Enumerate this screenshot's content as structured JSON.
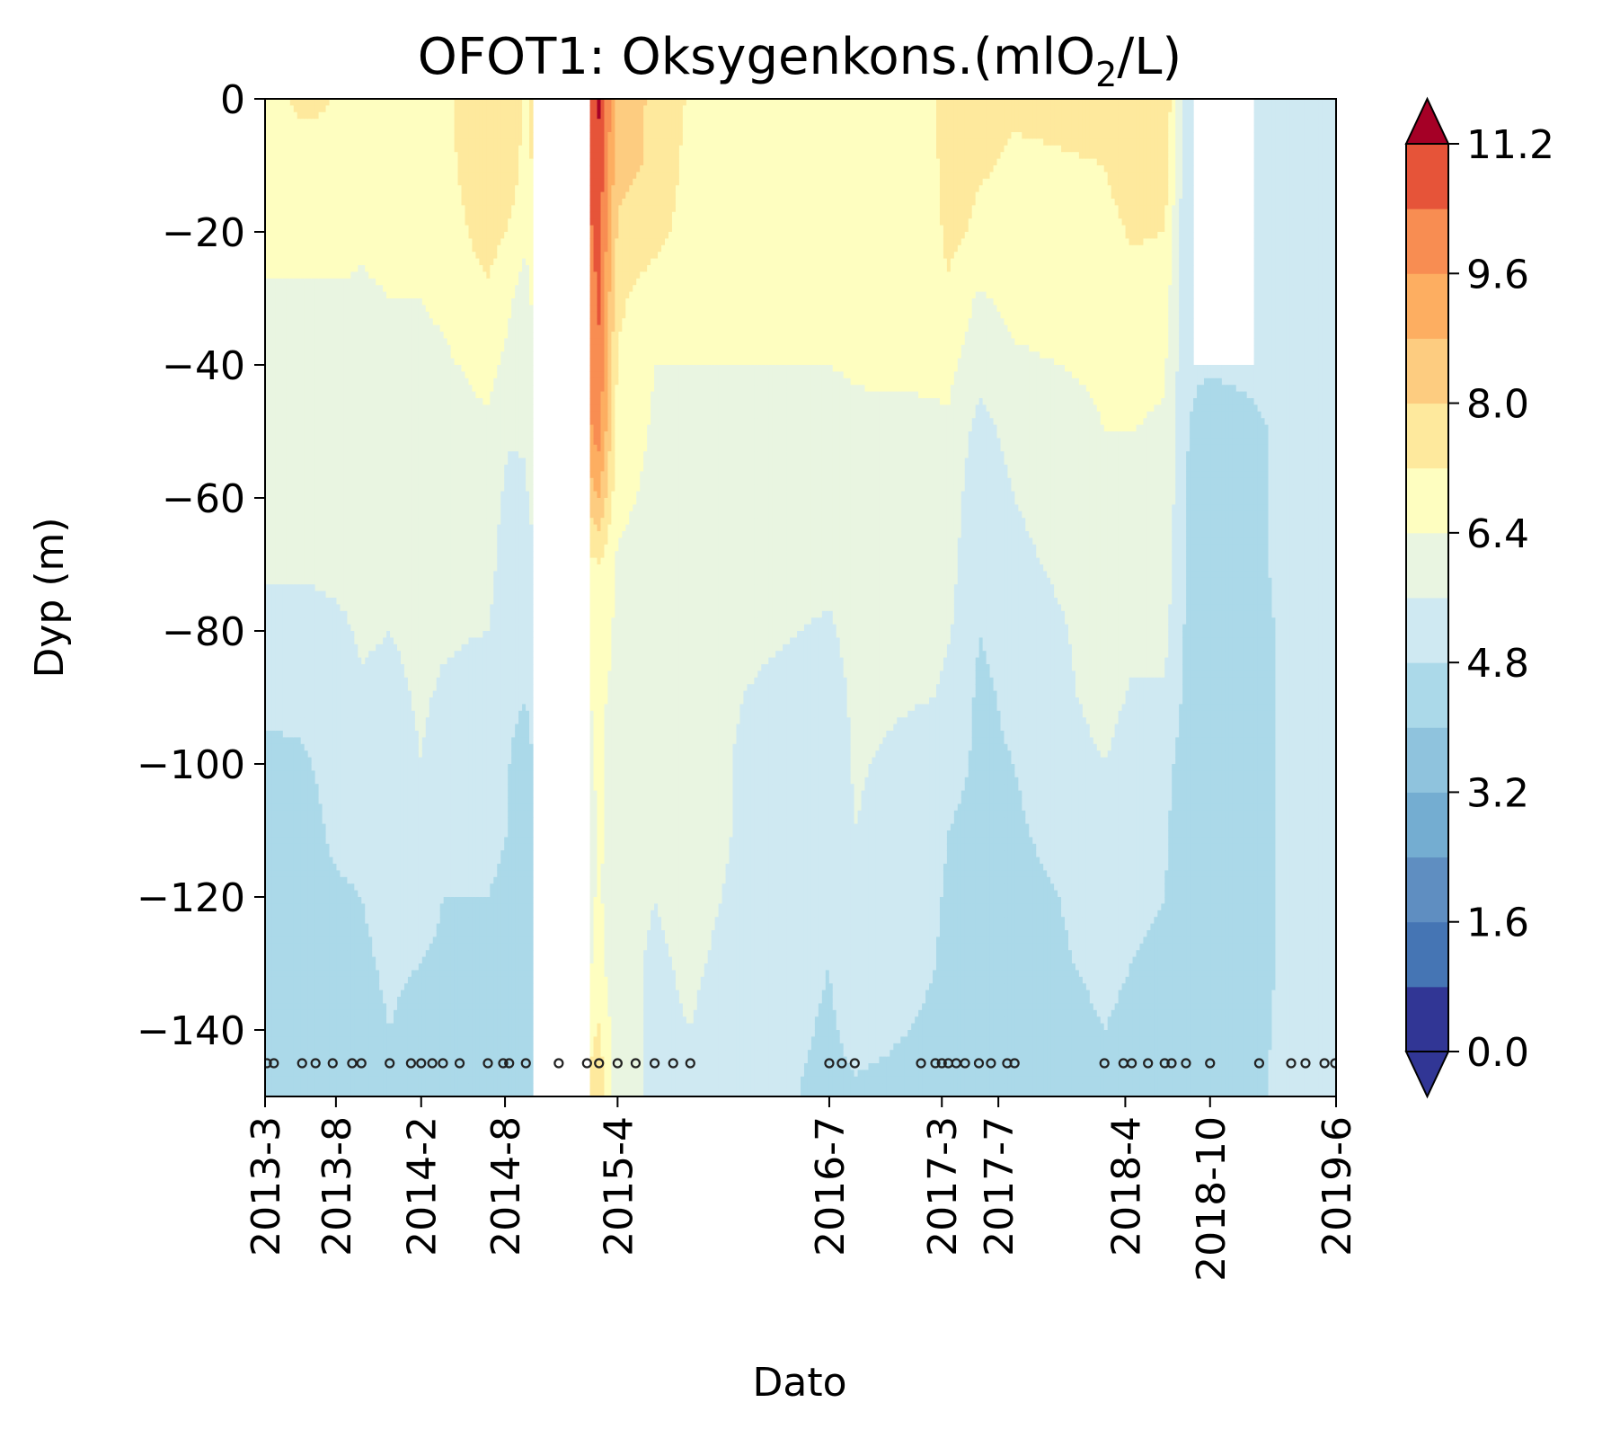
{
  "chart_data": {
    "type": "heatmap",
    "title_main": "OFOT1: Oksygenkons.(mlO",
    "title_sub": "2",
    "title_end": "/L)",
    "xlabel": "Dato",
    "ylabel": "Dyp (m)",
    "ylim": [
      -150,
      0
    ],
    "y_ticks": [
      0,
      -20,
      -40,
      -60,
      -80,
      -100,
      -120,
      -140
    ],
    "y_tick_labels": [
      "0",
      "−20",
      "−40",
      "−60",
      "−80",
      "−100",
      "−120",
      "−140"
    ],
    "x_range": [
      "2013-03-01",
      "2019-06-30"
    ],
    "x_ticks": [
      {
        "date": "2013-03-01",
        "label": "2013-3"
      },
      {
        "date": "2013-08-01",
        "label": "2013-8"
      },
      {
        "date": "2014-02-01",
        "label": "2014-2"
      },
      {
        "date": "2014-08-01",
        "label": "2014-8"
      },
      {
        "date": "2015-04-01",
        "label": "2015-4"
      },
      {
        "date": "2016-07-01",
        "label": "2016-7"
      },
      {
        "date": "2017-03-01",
        "label": "2017-3"
      },
      {
        "date": "2017-07-01",
        "label": "2017-7"
      },
      {
        "date": "2018-04-01",
        "label": "2018-4"
      },
      {
        "date": "2018-10-01",
        "label": "2018-10"
      },
      {
        "date": "2019-06-30",
        "label": "2019-6"
      }
    ],
    "sample_dates": [
      "2013-03-05",
      "2013-03-20",
      "2013-05-20",
      "2013-06-18",
      "2013-07-25",
      "2013-09-05",
      "2013-09-25",
      "2013-11-25",
      "2014-01-10",
      "2014-02-01",
      "2014-02-25",
      "2014-03-20",
      "2014-04-25",
      "2014-06-25",
      "2014-07-28",
      "2014-08-10",
      "2014-09-15",
      "2014-11-25",
      "2015-01-25",
      "2015-02-20",
      "2015-04-01",
      "2015-05-10",
      "2015-06-20",
      "2015-07-30",
      "2015-09-05",
      "2016-07-01",
      "2016-07-28",
      "2016-08-25",
      "2017-01-15",
      "2017-02-15",
      "2017-03-01",
      "2017-03-15",
      "2017-04-01",
      "2017-04-20",
      "2017-05-20",
      "2017-06-15",
      "2017-07-20",
      "2017-08-05",
      "2018-02-15",
      "2018-03-28",
      "2018-04-15",
      "2018-05-20",
      "2018-06-25",
      "2018-07-10",
      "2018-08-10",
      "2018-10-01",
      "2019-01-15",
      "2019-03-25",
      "2019-04-25",
      "2019-06-05",
      "2019-06-28"
    ],
    "depths": [
      0,
      10,
      20,
      30,
      40,
      50,
      60,
      70,
      80,
      90,
      100,
      110,
      120,
      130,
      140,
      150
    ],
    "profiles": [
      {
        "date": "2013-03-05",
        "o2": [
          7.0,
          6.9,
          6.6,
          6.3,
          6.1,
          6.0,
          5.9,
          5.7,
          5.4,
          5.1,
          4.5,
          4.4,
          4.4,
          4.3,
          4.3,
          4.3
        ]
      },
      {
        "date": "2013-05-20",
        "o2": [
          7.3,
          7.0,
          6.6,
          6.3,
          6.1,
          6.0,
          5.9,
          5.7,
          5.3,
          5.0,
          4.7,
          4.5,
          4.4,
          4.4,
          4.3,
          4.3
        ]
      },
      {
        "date": "2013-07-25",
        "o2": [
          7.2,
          7.1,
          6.7,
          6.3,
          6.2,
          6.0,
          5.9,
          5.8,
          5.4,
          5.1,
          5.0,
          4.9,
          4.7,
          4.6,
          4.5,
          4.5
        ]
      },
      {
        "date": "2013-09-25",
        "o2": [
          7.0,
          6.8,
          6.5,
          6.3,
          6.2,
          6.0,
          5.9,
          5.8,
          5.7,
          5.5,
          5.1,
          5.0,
          4.8,
          4.7,
          4.6,
          4.5
        ]
      },
      {
        "date": "2013-11-25",
        "o2": [
          6.9,
          6.7,
          6.6,
          6.4,
          6.2,
          6.1,
          6.0,
          5.8,
          5.6,
          5.4,
          5.2,
          5.0,
          5.0,
          4.9,
          4.8,
          4.6
        ]
      },
      {
        "date": "2014-02-01",
        "o2": [
          7.1,
          6.9,
          6.6,
          6.4,
          6.3,
          6.1,
          6.0,
          5.9,
          5.8,
          5.7,
          5.6,
          5.3,
          5.0,
          4.8,
          4.6,
          4.5
        ]
      },
      {
        "date": "2014-03-20",
        "o2": [
          7.0,
          6.9,
          6.7,
          6.5,
          6.3,
          6.1,
          6.0,
          5.9,
          5.7,
          5.5,
          5.2,
          5.0,
          4.8,
          4.7,
          4.6,
          4.6
        ]
      },
      {
        "date": "2014-06-25",
        "o2": [
          7.8,
          7.9,
          7.6,
          7.0,
          6.6,
          6.3,
          6.1,
          5.9,
          5.6,
          5.3,
          5.1,
          4.9,
          4.8,
          4.7,
          4.6,
          4.6
        ]
      },
      {
        "date": "2014-08-10",
        "o2": [
          7.9,
          7.7,
          7.1,
          6.5,
          6.2,
          5.7,
          5.3,
          5.1,
          5.0,
          4.9,
          4.8,
          4.8,
          4.7,
          4.6,
          4.5,
          4.5
        ]
      },
      {
        "date": "2014-09-15",
        "o2": [
          7.0,
          6.9,
          6.5,
          6.1,
          5.9,
          5.7,
          5.5,
          5.3,
          5.0,
          4.8,
          4.6,
          4.5,
          4.5,
          4.5,
          4.5,
          4.5
        ]
      },
      {
        "date": "2015-02-20",
        "o2": [
          11.3,
          11.0,
          10.8,
          10.5,
          10.3,
          10.0,
          8.8,
          7.2,
          6.9,
          6.6,
          6.5,
          6.5,
          6.5,
          6.6,
          7.3,
          7.8
        ]
      },
      {
        "date": "2015-04-01",
        "o2": [
          8.6,
          8.2,
          7.9,
          7.4,
          7.1,
          6.9,
          6.6,
          6.3,
          6.2,
          6.1,
          6.0,
          6.0,
          5.9,
          5.8,
          5.8,
          5.8
        ]
      },
      {
        "date": "2015-06-20",
        "o2": [
          7.8,
          7.9,
          7.5,
          6.7,
          6.4,
          6.3,
          6.2,
          6.1,
          6.0,
          5.9,
          5.8,
          5.7,
          5.6,
          5.5,
          5.5,
          5.5
        ]
      },
      {
        "date": "2015-09-05",
        "o2": [
          7.1,
          6.9,
          6.8,
          6.6,
          6.4,
          6.2,
          6.1,
          6.0,
          6.0,
          5.9,
          5.9,
          5.9,
          5.8,
          5.7,
          5.6,
          5.5
        ]
      },
      {
        "date": "2016-07-01",
        "o2": [
          7.2,
          7.2,
          7.0,
          6.7,
          6.4,
          6.0,
          5.9,
          5.8,
          5.5,
          5.1,
          4.9,
          4.9,
          4.9,
          4.8,
          4.7,
          4.6
        ]
      },
      {
        "date": "2016-08-25",
        "o2": [
          7.1,
          7.0,
          6.9,
          6.7,
          6.5,
          6.2,
          6.1,
          6.0,
          5.9,
          5.8,
          5.7,
          5.6,
          5.5,
          5.3,
          5.0,
          4.7
        ]
      },
      {
        "date": "2017-02-15",
        "o2": [
          7.2,
          7.0,
          6.9,
          6.7,
          6.5,
          6.3,
          6.2,
          6.0,
          5.9,
          5.6,
          5.2,
          5.0,
          4.9,
          4.8,
          4.7,
          4.6
        ]
      },
      {
        "date": "2017-03-15",
        "o2": [
          7.9,
          7.9,
          7.5,
          7.0,
          6.6,
          6.3,
          6.1,
          5.9,
          5.7,
          5.3,
          5.0,
          4.8,
          4.7,
          4.6,
          4.6,
          4.6
        ]
      },
      {
        "date": "2017-05-20",
        "o2": [
          7.5,
          7.3,
          7.0,
          6.3,
          5.9,
          5.3,
          5.0,
          4.9,
          4.8,
          4.7,
          4.7,
          4.6,
          4.6,
          4.5,
          4.5,
          4.5
        ]
      },
      {
        "date": "2017-08-05",
        "o2": [
          7.3,
          7.1,
          6.9,
          6.6,
          6.3,
          5.9,
          5.6,
          5.4,
          5.0,
          4.9,
          4.8,
          4.7,
          4.6,
          4.6,
          4.5,
          4.5
        ]
      },
      {
        "date": "2018-02-15",
        "o2": [
          7.4,
          7.2,
          6.9,
          6.7,
          6.5,
          6.4,
          6.2,
          6.1,
          6.0,
          5.9,
          5.6,
          5.3,
          5.0,
          4.9,
          4.8,
          4.7
        ]
      },
      {
        "date": "2018-04-15",
        "o2": [
          7.9,
          7.7,
          7.3,
          6.9,
          6.6,
          6.4,
          6.2,
          6.0,
          5.8,
          5.5,
          5.2,
          5.0,
          4.9,
          4.8,
          4.7,
          4.6
        ]
      },
      {
        "date": "2018-06-25",
        "o2": [
          8.0,
          7.7,
          7.2,
          6.8,
          6.5,
          6.3,
          6.2,
          6.0,
          5.8,
          5.5,
          5.0,
          4.9,
          4.8,
          4.7,
          4.6,
          4.6
        ]
      },
      {
        "date": "2018-08-10",
        "o2": [
          5.0,
          5.0,
          5.0,
          5.0,
          5.0,
          4.9,
          4.8,
          4.8,
          4.7,
          4.6,
          4.5,
          4.4,
          4.3,
          4.2,
          4.0,
          4.0
        ]
      },
      {
        "date": "2018-10-01",
        "o2": [
          5.0,
          5.0,
          5.0,
          5.0,
          5.0,
          4.0,
          4.0,
          4.0,
          4.0,
          4.0,
          4.0,
          4.0,
          4.0,
          4.0,
          4.2,
          4.3
        ]
      },
      {
        "date": "2019-03-25",
        "o2": [
          5.3,
          5.2,
          5.2,
          5.2,
          5.1,
          5.1,
          5.1,
          5.1,
          5.0,
          5.0,
          5.0,
          5.0,
          5.0,
          5.0,
          5.0,
          5.0
        ]
      },
      {
        "date": "2019-06-28",
        "o2": [
          5.3,
          5.2,
          5.2,
          5.2,
          5.1,
          5.1,
          5.1,
          5.1,
          5.0,
          5.0,
          5.0,
          5.0,
          5.0,
          5.0,
          5.0,
          5.0
        ]
      }
    ],
    "gaps": [
      {
        "from": "2014-10-01",
        "to": "2015-02-01"
      },
      {
        "from": "2018-08-25",
        "to": "2019-01-01",
        "above_depth": 40
      }
    ],
    "colorbar": {
      "levels": [
        0.0,
        0.8,
        1.6,
        2.4,
        3.2,
        4.0,
        4.8,
        5.6,
        6.4,
        7.2,
        8.0,
        8.8,
        9.6,
        10.4,
        11.2
      ],
      "colors": [
        "#313695",
        "#4575b4",
        "#5f8ec1",
        "#74add1",
        "#8fc3dd",
        "#abd9e9",
        "#cfe9f2",
        "#e9f5e1",
        "#fefec0",
        "#fee99d",
        "#fdcc80",
        "#fdae61",
        "#f88d52",
        "#e65439",
        "#d73027"
      ],
      "under_color": "#313695",
      "over_color": "#a50026",
      "tick_values": [
        0.0,
        1.6,
        3.2,
        4.8,
        6.4,
        8.0,
        9.6,
        11.2
      ],
      "tick_labels": [
        "0.0",
        "1.6",
        "3.2",
        "4.8",
        "6.4",
        "8.0",
        "9.6",
        "11.2"
      ],
      "extend": "both"
    },
    "sample_marker_depth": -145,
    "grid": false,
    "legend": "none"
  }
}
